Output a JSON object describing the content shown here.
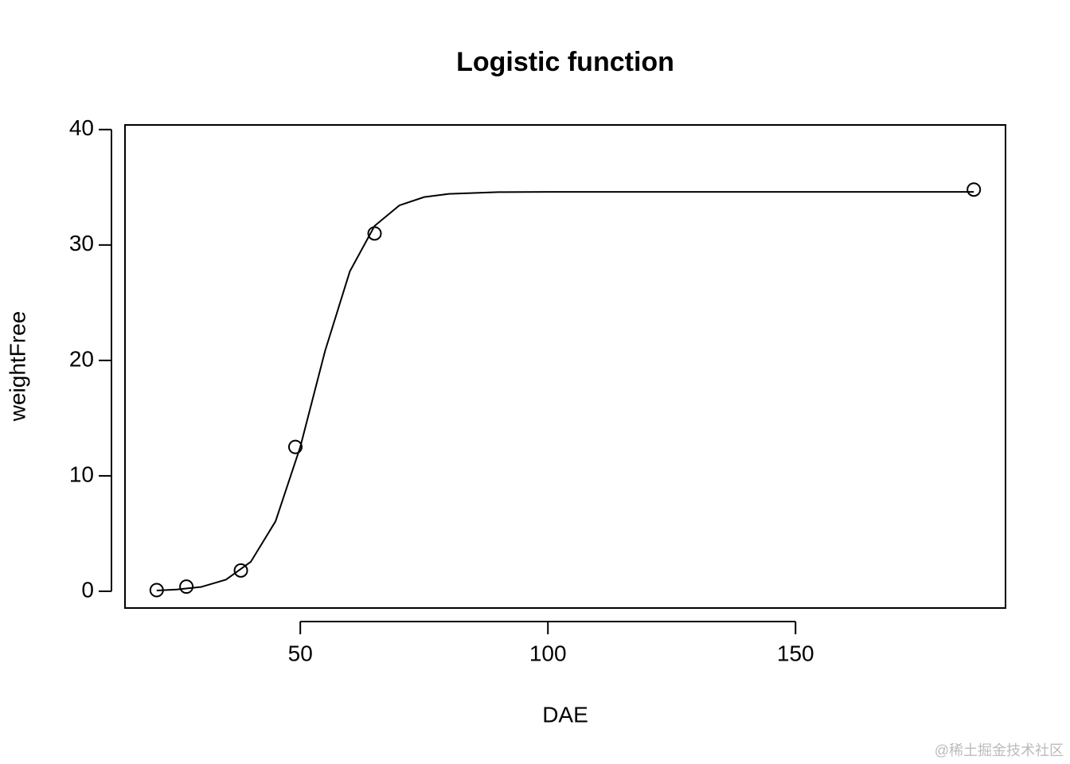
{
  "chart_data": {
    "type": "scatter",
    "title": "Logistic function",
    "x_label": "DAE",
    "y_label": "weightFree",
    "x": [
      21,
      27,
      38,
      49,
      65,
      186
    ],
    "y": [
      0.1,
      0.4,
      1.8,
      12.5,
      31,
      34.8
    ],
    "fit": {
      "x": [
        21,
        25,
        30,
        35,
        40,
        45,
        50,
        55,
        60,
        65,
        70,
        75,
        80,
        90,
        100,
        120,
        150,
        186
      ],
      "y": [
        0.07,
        0.15,
        0.38,
        1.01,
        2.55,
        6.06,
        12.51,
        20.82,
        27.71,
        31.65,
        33.43,
        34.15,
        34.43,
        34.58,
        34.6,
        34.6,
        34.6,
        34.6
      ]
    },
    "color": "#000000",
    "xlim": [
      14.6,
      192.4
    ],
    "ylim": [
      -1.45,
      40.4
    ],
    "xticks": [
      50,
      100,
      150
    ],
    "yticks": [
      0,
      10,
      20,
      30,
      40
    ]
  },
  "watermark": "@稀土掘金技术社区"
}
